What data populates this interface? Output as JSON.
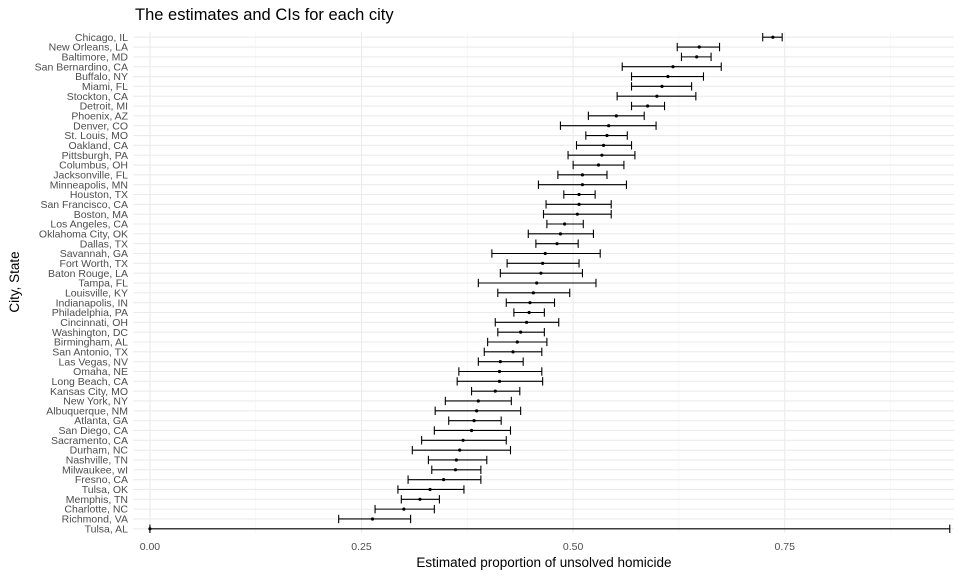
{
  "chart_data": {
    "type": "scatter",
    "title": "The estimates and CIs for each city",
    "xlabel": "Estimated proportion of unsolved homicide",
    "ylabel": "City, State",
    "xlim": [
      -0.02,
      0.95
    ],
    "x_ticks": [
      0.0,
      0.25,
      0.5,
      0.75
    ],
    "x_tick_labels": [
      "0.00",
      "0.25",
      "0.50",
      "0.75"
    ],
    "grid": true,
    "legend": "none",
    "point_color": "#000000",
    "points": [
      {
        "city": "Chicago, IL",
        "estimate": 0.736,
        "lower": 0.724,
        "upper": 0.747
      },
      {
        "city": "New Orleans, LA",
        "estimate": 0.649,
        "lower": 0.623,
        "upper": 0.673
      },
      {
        "city": "Baltimore, MD",
        "estimate": 0.646,
        "lower": 0.628,
        "upper": 0.663
      },
      {
        "city": "San Bernardino, CA",
        "estimate": 0.618,
        "lower": 0.558,
        "upper": 0.675
      },
      {
        "city": "Buffalo, NY",
        "estimate": 0.612,
        "lower": 0.569,
        "upper": 0.654
      },
      {
        "city": "Miami, FL",
        "estimate": 0.605,
        "lower": 0.569,
        "upper": 0.64
      },
      {
        "city": "Stockton, CA",
        "estimate": 0.599,
        "lower": 0.552,
        "upper": 0.645
      },
      {
        "city": "Detroit, MI",
        "estimate": 0.588,
        "lower": 0.569,
        "upper": 0.608
      },
      {
        "city": "Phoenix, AZ",
        "estimate": 0.551,
        "lower": 0.518,
        "upper": 0.584
      },
      {
        "city": "Denver, CO",
        "estimate": 0.542,
        "lower": 0.485,
        "upper": 0.598
      },
      {
        "city": "St. Louis, MO",
        "estimate": 0.54,
        "lower": 0.515,
        "upper": 0.564
      },
      {
        "city": "Oakland, CA",
        "estimate": 0.536,
        "lower": 0.504,
        "upper": 0.569
      },
      {
        "city": "Pittsburgh, PA",
        "estimate": 0.534,
        "lower": 0.494,
        "upper": 0.573
      },
      {
        "city": "Columbus, OH",
        "estimate": 0.53,
        "lower": 0.5,
        "upper": 0.56
      },
      {
        "city": "Jacksonville, FL",
        "estimate": 0.511,
        "lower": 0.482,
        "upper": 0.54
      },
      {
        "city": "Minneapolis, MN",
        "estimate": 0.511,
        "lower": 0.459,
        "upper": 0.563
      },
      {
        "city": "Houston, TX",
        "estimate": 0.507,
        "lower": 0.489,
        "upper": 0.526
      },
      {
        "city": "San Francisco, CA",
        "estimate": 0.507,
        "lower": 0.468,
        "upper": 0.545
      },
      {
        "city": "Boston, MA",
        "estimate": 0.505,
        "lower": 0.465,
        "upper": 0.545
      },
      {
        "city": "Los Angeles, CA",
        "estimate": 0.49,
        "lower": 0.469,
        "upper": 0.512
      },
      {
        "city": "Oklahoma City, OK",
        "estimate": 0.485,
        "lower": 0.447,
        "upper": 0.524
      },
      {
        "city": "Dallas, TX",
        "estimate": 0.481,
        "lower": 0.456,
        "upper": 0.506
      },
      {
        "city": "Savannah, GA",
        "estimate": 0.467,
        "lower": 0.404,
        "upper": 0.532
      },
      {
        "city": "Fort Worth, TX",
        "estimate": 0.464,
        "lower": 0.422,
        "upper": 0.507
      },
      {
        "city": "Baton Rouge, LA",
        "estimate": 0.462,
        "lower": 0.414,
        "upper": 0.511
      },
      {
        "city": "Tampa, FL",
        "estimate": 0.457,
        "lower": 0.388,
        "upper": 0.527
      },
      {
        "city": "Louisville, KY",
        "estimate": 0.453,
        "lower": 0.411,
        "upper": 0.496
      },
      {
        "city": "Indianapolis, IN",
        "estimate": 0.449,
        "lower": 0.421,
        "upper": 0.478
      },
      {
        "city": "Philadelphia, PA",
        "estimate": 0.448,
        "lower": 0.43,
        "upper": 0.466
      },
      {
        "city": "Cincinnati, OH",
        "estimate": 0.445,
        "lower": 0.408,
        "upper": 0.483
      },
      {
        "city": "Washington, DC",
        "estimate": 0.438,
        "lower": 0.411,
        "upper": 0.466
      },
      {
        "city": "Birmingham, AL",
        "estimate": 0.434,
        "lower": 0.399,
        "upper": 0.469
      },
      {
        "city": "San Antonio, TX",
        "estimate": 0.429,
        "lower": 0.395,
        "upper": 0.463
      },
      {
        "city": "Las Vegas, NV",
        "estimate": 0.414,
        "lower": 0.388,
        "upper": 0.441
      },
      {
        "city": "Omaha, NE",
        "estimate": 0.413,
        "lower": 0.365,
        "upper": 0.463
      },
      {
        "city": "Long Beach, CA",
        "estimate": 0.413,
        "lower": 0.363,
        "upper": 0.464
      },
      {
        "city": "Kansas City, MO",
        "estimate": 0.408,
        "lower": 0.38,
        "upper": 0.437
      },
      {
        "city": "New York, NY",
        "estimate": 0.388,
        "lower": 0.349,
        "upper": 0.427
      },
      {
        "city": "Albuquerque, NM",
        "estimate": 0.386,
        "lower": 0.337,
        "upper": 0.438
      },
      {
        "city": "Atlanta, GA",
        "estimate": 0.383,
        "lower": 0.353,
        "upper": 0.415
      },
      {
        "city": "San Diego, CA",
        "estimate": 0.38,
        "lower": 0.336,
        "upper": 0.426
      },
      {
        "city": "Sacramento, CA",
        "estimate": 0.37,
        "lower": 0.321,
        "upper": 0.421
      },
      {
        "city": "Durham, NC",
        "estimate": 0.366,
        "lower": 0.31,
        "upper": 0.426
      },
      {
        "city": "Nashville, TN",
        "estimate": 0.362,
        "lower": 0.329,
        "upper": 0.398
      },
      {
        "city": "Milwaukee, wI",
        "estimate": 0.361,
        "lower": 0.333,
        "upper": 0.391
      },
      {
        "city": "Fresno, CA",
        "estimate": 0.347,
        "lower": 0.305,
        "upper": 0.391
      },
      {
        "city": "Tulsa, OK",
        "estimate": 0.331,
        "lower": 0.293,
        "upper": 0.371
      },
      {
        "city": "Memphis, TN",
        "estimate": 0.319,
        "lower": 0.297,
        "upper": 0.342
      },
      {
        "city": "Charlotte, NC",
        "estimate": 0.3,
        "lower": 0.266,
        "upper": 0.336
      },
      {
        "city": "Richmond, VA",
        "estimate": 0.263,
        "lower": 0.223,
        "upper": 0.308
      },
      {
        "city": "Tulsa, AL",
        "estimate": 0.0,
        "lower": 0.0,
        "upper": 0.945
      }
    ]
  }
}
